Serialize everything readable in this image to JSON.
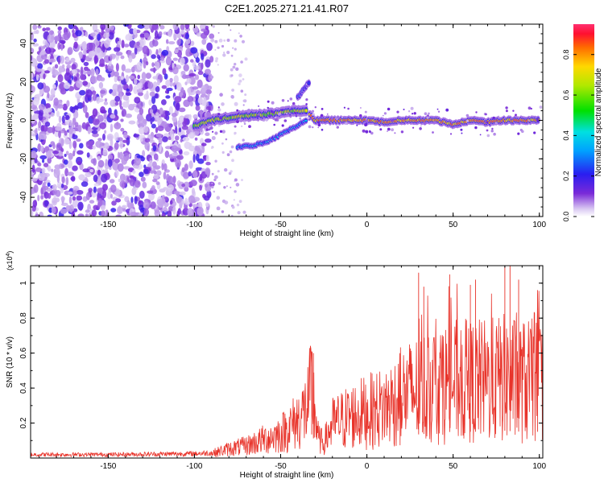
{
  "figure": {
    "title": "C2E1.2025.271.21.41.R07"
  },
  "chart_data": [
    {
      "type": "heatmap",
      "name": "spectrogram",
      "xlabel": "Height of straight line (km)",
      "ylabel": "Frequency (Hz)",
      "xlim": [
        -195,
        102
      ],
      "ylim": [
        -50,
        50
      ],
      "xticks": [
        -150,
        -100,
        -50,
        0,
        50,
        100
      ],
      "yticks": [
        -40,
        -20,
        0,
        20,
        40
      ],
      "colorbar": {
        "label": "Normalized spectral amplitude",
        "range": [
          0,
          0.95
        ],
        "ticks": [
          0.0,
          0.2,
          0.4,
          0.6,
          0.8
        ]
      },
      "features": [
        {
          "name": "noise-region",
          "x_range": [
            -195,
            -90
          ],
          "description_values": "scattered low-to-mid amplitude noise"
        },
        {
          "name": "main-line",
          "points": [
            [
              -100,
              -3
            ],
            [
              -90,
              0
            ],
            [
              -75,
              2
            ],
            [
              -60,
              3
            ],
            [
              -50,
              4
            ],
            [
              -40,
              5
            ],
            [
              -35,
              5
            ],
            [
              -30,
              0
            ],
            [
              -20,
              0
            ],
            [
              -10,
              0
            ],
            [
              0,
              0
            ],
            [
              10,
              -1
            ],
            [
              20,
              0
            ],
            [
              30,
              0
            ],
            [
              40,
              0
            ],
            [
              50,
              -2
            ],
            [
              60,
              0
            ],
            [
              70,
              -1
            ],
            [
              80,
              0
            ],
            [
              90,
              0
            ],
            [
              100,
              0
            ]
          ]
        },
        {
          "name": "lower-branch",
          "points": [
            [
              -75,
              -14
            ],
            [
              -65,
              -13
            ],
            [
              -55,
              -10
            ],
            [
              -45,
              -5
            ],
            [
              -35,
              0
            ]
          ]
        },
        {
          "name": "upper-spur",
          "points": [
            [
              -40,
              12
            ],
            [
              -35,
              18
            ],
            [
              -33,
              20
            ]
          ]
        }
      ]
    },
    {
      "type": "line",
      "name": "snr",
      "xlabel": "Height of straight line (km)",
      "ylabel": "SNR (10 * v/v)",
      "multiplier_label": "(x10",
      "multiplier_exp": "4",
      "multiplier_close": ")",
      "xlim": [
        -195,
        102
      ],
      "ylim": [
        0,
        1.1
      ],
      "xticks": [
        -150,
        -100,
        -50,
        0,
        50,
        100
      ],
      "yticks": [
        0.2,
        0.4,
        0.6,
        0.8,
        1.0
      ],
      "color": "#e8332a",
      "envelope": [
        [
          -195,
          0.02
        ],
        [
          -150,
          0.02
        ],
        [
          -100,
          0.025
        ],
        [
          -90,
          0.03
        ],
        [
          -80,
          0.06
        ],
        [
          -70,
          0.08
        ],
        [
          -60,
          0.12
        ],
        [
          -50,
          0.16
        ],
        [
          -45,
          0.2
        ],
        [
          -40,
          0.25
        ],
        [
          -35,
          0.32
        ],
        [
          -32,
          0.45
        ],
        [
          -30,
          0.3
        ],
        [
          -28,
          0.12
        ],
        [
          -25,
          0.1
        ],
        [
          -20,
          0.22
        ],
        [
          -10,
          0.27
        ],
        [
          0,
          0.3
        ],
        [
          10,
          0.33
        ],
        [
          20,
          0.4
        ],
        [
          30,
          0.45
        ],
        [
          40,
          0.48
        ],
        [
          50,
          0.5
        ],
        [
          60,
          0.5
        ],
        [
          70,
          0.5
        ],
        [
          80,
          0.52
        ],
        [
          90,
          0.5
        ],
        [
          100,
          0.5
        ]
      ],
      "spikes": [
        [
          -32,
          0.61
        ],
        [
          -31,
          0.6
        ],
        [
          30,
          1.06
        ],
        [
          33,
          0.98
        ],
        [
          48,
          1.05
        ],
        [
          60,
          0.99
        ],
        [
          63,
          1.02
        ],
        [
          80,
          1.1
        ],
        [
          83,
          1.1
        ],
        [
          88,
          1.02
        ],
        [
          99,
          0.96
        ]
      ]
    }
  ]
}
